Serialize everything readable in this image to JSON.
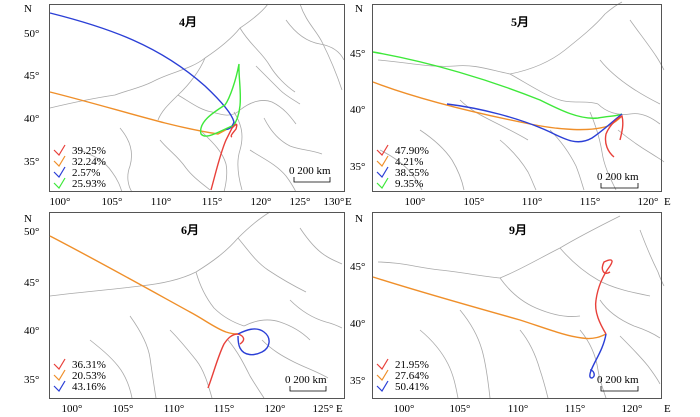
{
  "colors": {
    "red": "#e8403a",
    "orange": "#ef8f2a",
    "blue": "#2b3fd6",
    "green": "#3ee83a",
    "border": "#a9a9a9",
    "frame": "#555555"
  },
  "north_label": "N",
  "east_label": "E",
  "scale_label": "0    200 km",
  "panels": [
    {
      "title": "4月",
      "x_ticks": [
        "100°",
        "105°",
        "110°",
        "115°",
        "120°",
        "125°",
        "130°"
      ],
      "y_ticks": [
        "50°",
        "45°",
        "40°",
        "35°"
      ],
      "legend": [
        {
          "color": "red",
          "label": "39.25%"
        },
        {
          "color": "orange",
          "label": "32.24%"
        },
        {
          "color": "blue",
          "label": "2.57%"
        },
        {
          "color": "green",
          "label": "25.93%"
        }
      ]
    },
    {
      "title": "5月",
      "x_ticks": [
        "100°",
        "105°",
        "110°",
        "115°",
        "120°"
      ],
      "y_ticks": [
        "45°",
        "40°",
        "35°"
      ],
      "legend": [
        {
          "color": "red",
          "label": "47.90%"
        },
        {
          "color": "orange",
          "label": "4.21%"
        },
        {
          "color": "blue",
          "label": "38.55%"
        },
        {
          "color": "green",
          "label": "9.35%"
        }
      ]
    },
    {
      "title": "6月",
      "x_ticks": [
        "100°",
        "105°",
        "110°",
        "115°",
        "120°",
        "125°"
      ],
      "y_ticks": [
        "50°",
        "45°",
        "40°",
        "35°"
      ],
      "legend": [
        {
          "color": "red",
          "label": "36.31%"
        },
        {
          "color": "orange",
          "label": "20.53%"
        },
        {
          "color": "blue",
          "label": "43.16%"
        }
      ]
    },
    {
      "title": "9月",
      "x_ticks": [
        "100°",
        "105°",
        "110°",
        "115°",
        "120°"
      ],
      "y_ticks": [
        "45°",
        "40°",
        "35°"
      ],
      "legend": [
        {
          "color": "red",
          "label": "21.95%"
        },
        {
          "color": "orange",
          "label": "27.64%"
        },
        {
          "color": "blue",
          "label": "50.41%"
        }
      ]
    }
  ]
}
